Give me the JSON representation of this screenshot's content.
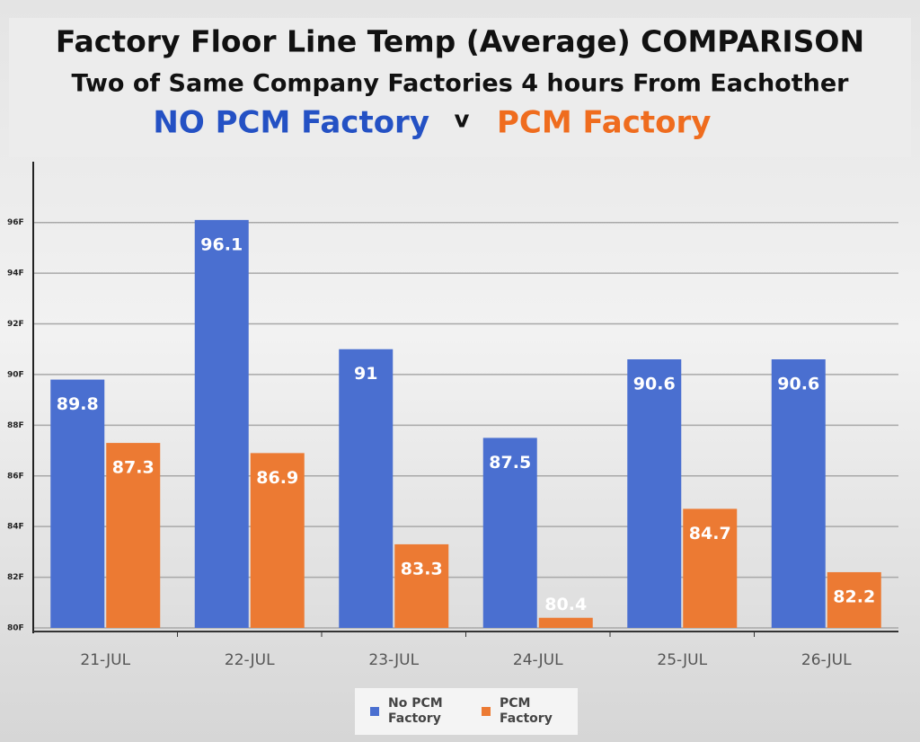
{
  "chart_data": {
    "type": "bar",
    "title": "Factory Floor Line Temp (Average) COMPARISON",
    "subtitle": "Two of Same Company Factories 4 hours From Eachother",
    "heading_left": "NO PCM Factory",
    "heading_separator": "v",
    "heading_right": "PCM Factory",
    "categories": [
      "21-JUL",
      "22-JUL",
      "23-JUL",
      "24-JUL",
      "25-JUL",
      "26-JUL"
    ],
    "series": [
      {
        "name": "No PCM Factory",
        "color": "#4a6fd0",
        "values": [
          89.8,
          96.1,
          91,
          87.5,
          90.6,
          90.6
        ]
      },
      {
        "name": "PCM Factory",
        "color": "#ec7a33",
        "values": [
          87.3,
          86.9,
          83.3,
          80.4,
          84.7,
          82.2
        ]
      }
    ],
    "ylim": [
      80,
      98.4
    ],
    "yticks": [
      {
        "value": 80,
        "label": "80F"
      },
      {
        "value": 82,
        "label": "82F"
      },
      {
        "value": 84,
        "label": "84F"
      },
      {
        "value": 86,
        "label": "86F"
      },
      {
        "value": 88,
        "label": "88F"
      },
      {
        "value": 90,
        "label": "90F"
      },
      {
        "value": 92,
        "label": "92F"
      },
      {
        "value": 94,
        "label": "94F"
      },
      {
        "value": 96,
        "label": "96F"
      }
    ],
    "grid": true,
    "legend": "bottom"
  }
}
